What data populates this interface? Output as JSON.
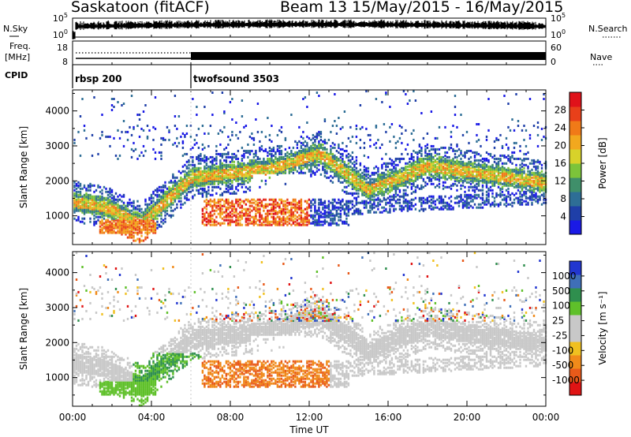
{
  "header": {
    "station": "Saskatoon (fitACF)",
    "beam_date": "Beam 13  15/May/2015 - 16/May/2015"
  },
  "colors": {
    "power_scale": [
      "#1a1ae6",
      "#1f3fa8",
      "#2e6e96",
      "#3f8f6a",
      "#7cc43a",
      "#d8d22a",
      "#f2a81e",
      "#f07a18",
      "#e8401a",
      "#e0121a"
    ],
    "velocity_scale": [
      "#2236d0",
      "#3f6fb8",
      "#2f8f4e",
      "#5fc02a",
      "#c8c8c8",
      "#c8c8c8",
      "#f0c020",
      "#f08a1a",
      "#e85a1a",
      "#e01414"
    ]
  },
  "chart_data": [
    {
      "type": "line",
      "panel": "noise",
      "labels": {
        "left": "N.Sky",
        "right": "N.Search"
      },
      "left_ticks": [
        "10^5",
        "10^0"
      ],
      "right_ticks": [
        "10^5",
        "10^0"
      ],
      "xlim": [
        0,
        24
      ]
    },
    {
      "type": "line",
      "panel": "frequency",
      "labels": {
        "left_top": "Freq.",
        "left_bottom": "[MHz]",
        "right": "Nave"
      },
      "left_ticks": [
        "18",
        "8"
      ],
      "right_ticks": [
        "60",
        "0"
      ],
      "xlim": [
        0,
        24
      ]
    },
    {
      "type": "table",
      "panel": "cpid",
      "label": "CPID",
      "segments": [
        {
          "name": "rbsp 200",
          "start": 0,
          "end": 6.0
        },
        {
          "name": "twofsound 3503",
          "start": 6.0,
          "end": 24
        }
      ]
    },
    {
      "type": "heatmap",
      "panel": "power",
      "ylabel": "Slant Range [km]",
      "yticks": [
        1000,
        2000,
        3000,
        4000
      ],
      "ylim": [
        180,
        4600
      ],
      "xlim": [
        0,
        24
      ],
      "colorbar": {
        "label": "Power [dB]",
        "ticks": [
          "28",
          "24",
          "20",
          "16",
          "12",
          "8",
          "4"
        ]
      }
    },
    {
      "type": "heatmap",
      "panel": "velocity",
      "ylabel": "Slant Range [km]",
      "yticks": [
        1000,
        2000,
        3000,
        4000
      ],
      "ylim": [
        180,
        4600
      ],
      "xlim": [
        0,
        24
      ],
      "xticks": [
        "00:00",
        "04:00",
        "08:00",
        "12:00",
        "16:00",
        "20:00",
        "00:00"
      ],
      "xlabel": "Time UT",
      "colorbar": {
        "label": "Velocity [m s⁻¹]",
        "ticks": [
          "1000",
          "500",
          "100",
          "25",
          "-25",
          "-100",
          "-500",
          "-1000"
        ]
      }
    }
  ]
}
